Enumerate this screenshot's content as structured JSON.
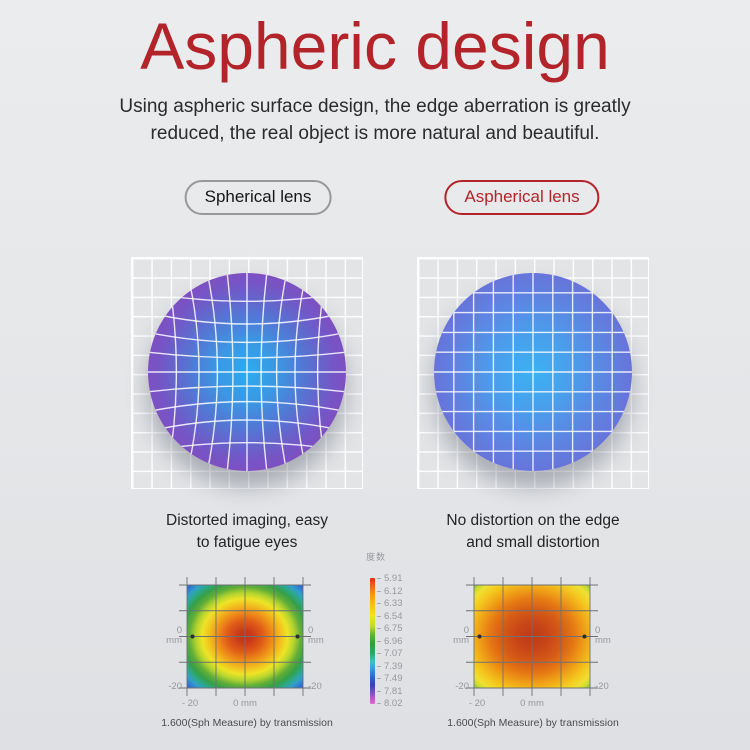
{
  "header": {
    "title": "Aspheric design",
    "subtitle_line1": "Using aspheric surface design, the edge aberration is greatly",
    "subtitle_line2": "reduced, the real object is more natural and beautiful."
  },
  "pills": {
    "spherical_label": "Spherical lens",
    "aspherical_label": "Aspherical lens"
  },
  "lenses": {
    "spherical": {
      "caption_line1": "Distorted imaging, easy",
      "caption_line2": "to fatigue eyes",
      "center_color": "#2cabee",
      "edge_color": "#8646ba",
      "grid": "distorted-pincushion"
    },
    "aspherical": {
      "caption_line1": "No distortion on the edge",
      "caption_line2": "and small distortion",
      "center_color": "#3cb2f2",
      "edge_color": "#6e68d6",
      "grid": "regular"
    }
  },
  "heatmap_axis": {
    "zero": "0",
    "unit": "mm",
    "neg20_left": "-20",
    "neg20_right": "-20",
    "x_left": "- 20",
    "x_center": "0 mm"
  },
  "heatmaps": {
    "left_caption": "1.600(Sph Measure) by transmission",
    "right_caption": "1.600(Sph Measure) by transmission"
  },
  "legend": {
    "title": "度数",
    "values": [
      "5.91",
      "6.12",
      "6.33",
      "6.54",
      "6.75",
      "6.96",
      "7.07",
      "7.39",
      "7.49",
      "7.81",
      "8.02"
    ]
  },
  "colors": {
    "title_red": "#b2242a",
    "pill_gray_border": "#97989b",
    "pill_red_border": "#b3242a",
    "background": "#e6e8ea",
    "axis_label_gray": "#95979a"
  },
  "chart_data": {
    "type": "heatmap",
    "unit": "mm",
    "x_range": [
      -20,
      20
    ],
    "y_range": [
      -20,
      20
    ],
    "colorbar": {
      "title": "度数",
      "tick_values": [
        -5.91,
        -6.12,
        -6.33,
        -6.54,
        -6.75,
        -6.96,
        -7.07,
        -7.39,
        -7.49,
        -7.81,
        -8.02
      ],
      "colors_top_to_bottom": [
        "red",
        "orange",
        "yellow",
        "yellow-green",
        "green",
        "teal",
        "cyan",
        "blue",
        "indigo",
        "violet",
        "magenta"
      ]
    },
    "panels": [
      {
        "name": "spherical-lens-power-map",
        "caption": "1.600(Sph Measure) by transmission",
        "pattern": "concentric rings; center ~-5.91 D (red) falling to ~-8.02 D at corners (blue): red > orange > yellow > green > cyan > blue",
        "center_markers_on_zero_line": 2
      },
      {
        "name": "aspherical-lens-power-map",
        "caption": "1.600(Sph Measure) by transmission",
        "pattern": "nearly uniform; large red-orange center ~-5.9 to -6.3 D, yellow edges ~-6.5 D, small green corner patches ~-6.8 D",
        "center_markers_on_zero_line": 2
      }
    ]
  }
}
